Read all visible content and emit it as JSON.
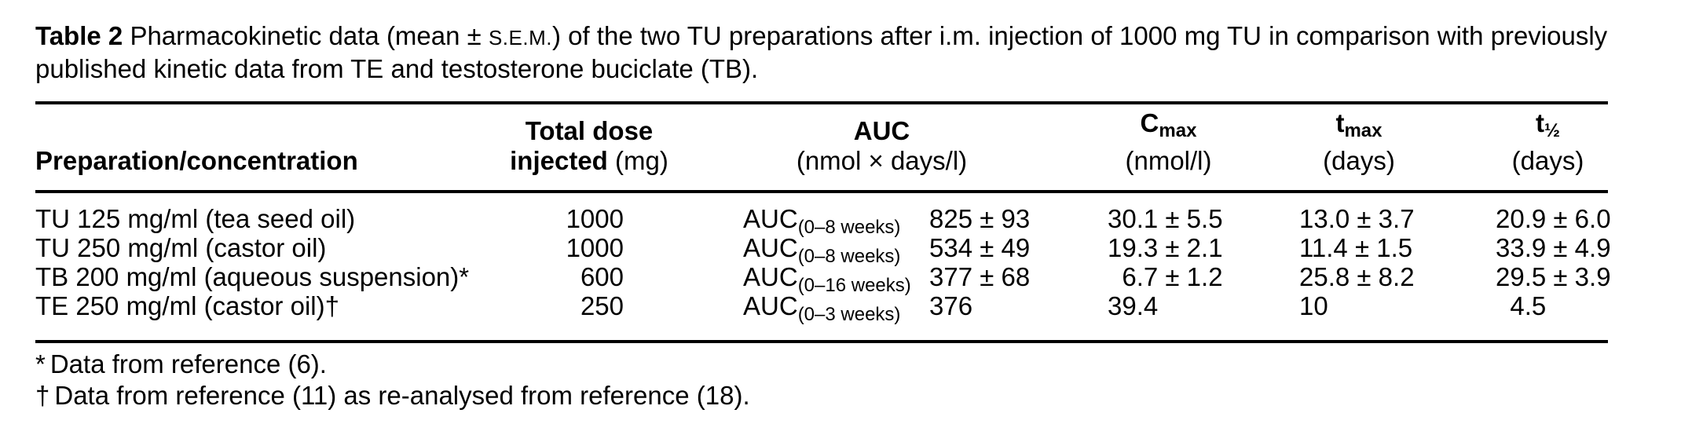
{
  "caption": {
    "label": "Table 2",
    "pre_sem": "Pharmacokinetic data (mean ±",
    "sem": "S.E.M.",
    "post_sem": ") of the two TU preparations after i.m. injection of 1000 mg TU in comparison with previously",
    "line2": "published kinetic data from TE and testosterone buciclate (TB)."
  },
  "columns": [
    {
      "label": "Preparation/concentration"
    },
    {
      "label": "Total dose",
      "label2": "injected",
      "unit": "(mg)"
    },
    {
      "label": "AUC",
      "unit": "(nmol × days/l)"
    },
    {
      "label": "C",
      "sub": "max",
      "unit": "(nmol/l)"
    },
    {
      "label": "t",
      "sub": "max",
      "unit": "(days)"
    },
    {
      "label": "t",
      "sub": "½",
      "unit": "(days)"
    }
  ],
  "rows": [
    {
      "prep": "TU 125 mg/ml (tea seed oil)",
      "dose": "1000",
      "auc_label": "AUC",
      "auc_sub": "(0–8 weeks)",
      "auc_value": "825 ± 93",
      "cmax": "30.1 ± 5.5",
      "tmax": "13.0 ± 3.7",
      "thalf": "20.9 ± 6.0"
    },
    {
      "prep": "TU 250 mg/ml (castor oil)",
      "dose": "1000",
      "auc_label": "AUC",
      "auc_sub": "(0–8 weeks)",
      "auc_value": "534 ± 49",
      "cmax": "19.3 ± 2.1",
      "tmax": "11.4 ± 1.5",
      "thalf": "33.9 ± 4.9"
    },
    {
      "prep": "TB 200 mg/ml (aqueous suspension)*",
      "dose": "600",
      "auc_label": "AUC",
      "auc_sub": "(0–16 weeks)",
      "auc_value": "377 ± 68",
      "cmax": " 6.7 ± 1.2",
      "tmax": "25.8 ± 8.2",
      "thalf": "29.5 ± 3.9"
    },
    {
      "prep": "TE 250 mg/ml (castor oil)†",
      "dose": "250",
      "auc_label": "AUC",
      "auc_sub": "(0–3 weeks)",
      "auc_value": "376",
      "cmax": "39.4",
      "tmax": "10",
      "thalf": " 4.5"
    }
  ],
  "footnotes": [
    {
      "marker": "*",
      "text": "Data from reference (6)."
    },
    {
      "marker": "†",
      "text": "Data from reference (11) as re-analysed from reference (18)."
    }
  ]
}
